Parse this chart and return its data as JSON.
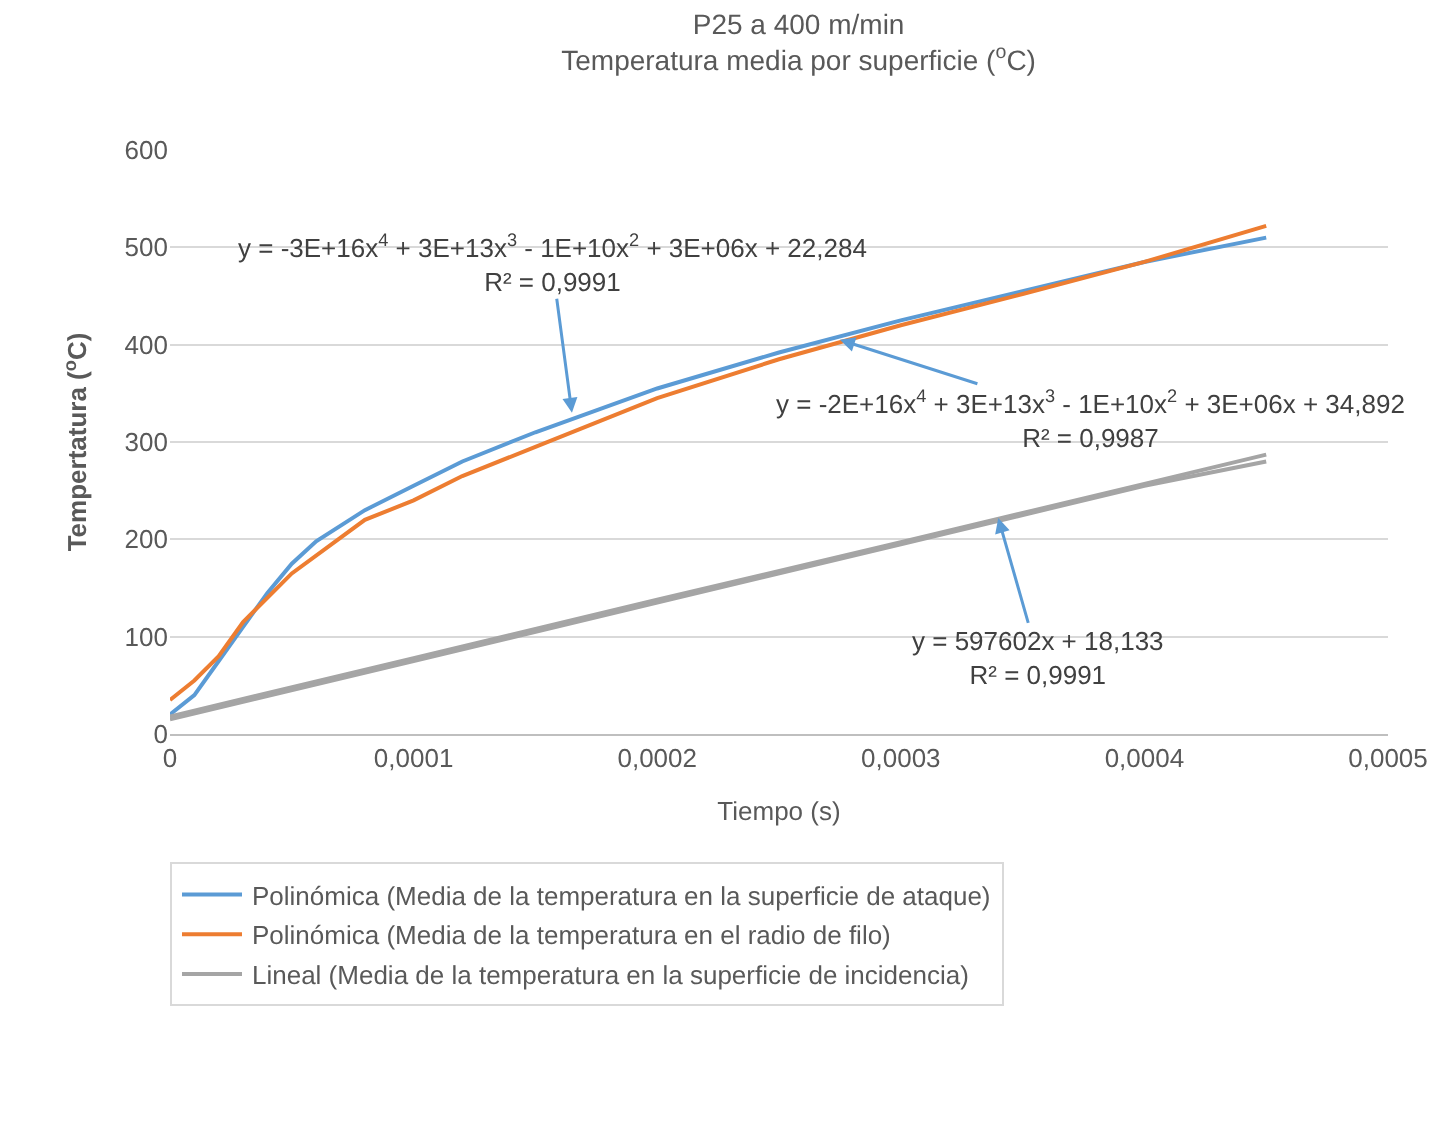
{
  "chart_data": {
    "type": "line",
    "title": "P25 a 400 m/min\nTemperatura media por superficie ($^{o}$C)",
    "xlabel": "Tiempo (s)",
    "ylabel": "Tempertatura ($^{o}$C)",
    "xlim": [
      0,
      0.0005
    ],
    "ylim": [
      0,
      600
    ],
    "xticks": [
      0,
      {
        "value": 0.0001,
        "label": "0,0001"
      },
      {
        "value": 0.0002,
        "label": "0,0002"
      },
      {
        "value": 0.0003,
        "label": "0,0003"
      },
      {
        "value": 0.0004,
        "label": "0,0004"
      },
      {
        "value": 0.0005,
        "label": "0,0005"
      }
    ],
    "yticks": [
      0,
      100,
      200,
      300,
      400,
      500,
      600
    ],
    "grid": "y",
    "legend": "bottom",
    "series": [
      {
        "name": "Polinómica (Media de la temperatura en la superficie de ataque)",
        "color": "#5b9bd5",
        "x": [
          0,
          1e-05,
          2e-05,
          3e-05,
          4e-05,
          5e-05,
          6e-05,
          8e-05,
          0.0001,
          0.00012,
          0.00015,
          0.0002,
          0.00025,
          0.0003,
          0.00035,
          0.0004,
          0.00045
        ],
        "values": [
          20,
          40,
          75,
          110,
          145,
          175,
          198,
          230,
          255,
          280,
          310,
          355,
          392,
          425,
          455,
          485,
          510
        ]
      },
      {
        "name": "Polinómica (Media de la temperatura en el radio de filo)",
        "color": "#ed7d31",
        "x": [
          0,
          1e-05,
          2e-05,
          3e-05,
          5e-05,
          8e-05,
          0.0001,
          0.00012,
          0.00015,
          0.0002,
          0.00025,
          0.0003,
          0.00035,
          0.0004,
          0.00045
        ],
        "values": [
          35,
          55,
          80,
          115,
          165,
          220,
          240,
          265,
          295,
          345,
          385,
          420,
          452,
          485,
          522
        ]
      },
      {
        "name": "Lineal (Media de la temperatura en la superficie de incidencia)",
        "color": "#a5a5a5",
        "x": [
          0,
          0.0001,
          0.0002,
          0.0003,
          0.0004,
          0.00045
        ],
        "values": [
          18,
          78,
          138,
          197,
          257,
          287
        ]
      },
      {
        "color": "#a5a5a5",
        "x": [
          0,
          0.0001,
          0.0002,
          0.0003,
          0.0004,
          0.00045
        ],
        "values": [
          15,
          75,
          135,
          195,
          255,
          280
        ]
      }
    ],
    "annotations": [
      {
        "text": "y = -3E+16x$^{4}$ + 3E+13x$^{3}$ - 1E+10x$^{2}$ + 3E+06x + 22,284\nR² = 0,9991",
        "x": 0.000165,
        "y": 330
      },
      {
        "text": "y = -2E+16x$^{4}$ + 3E+13x$^{3}$ - 1E+10x$^{2}$ + 3E+06x + 34,892\nR² = 0,9987",
        "x": 0.000275,
        "y": 405
      },
      {
        "text": "y = 597602x + 18,133\nR² = 0,9991",
        "x": 0.00034,
        "y": 222
      }
    ]
  }
}
